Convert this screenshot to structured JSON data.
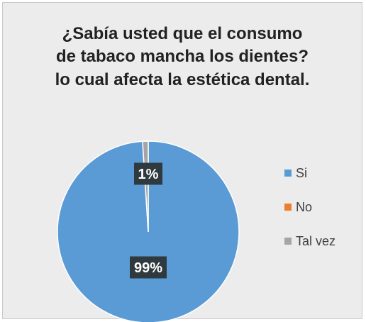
{
  "chart_data": {
    "type": "pie",
    "title_lines": [
      "¿Sabía usted que el consumo",
      "de tabaco mancha los dientes?",
      "lo cual afecta la estética dental."
    ],
    "categories": [
      "Si",
      "No",
      "Tal vez"
    ],
    "values": [
      99,
      0,
      1
    ],
    "data_labels": [
      "99%",
      "",
      "1%"
    ],
    "colors": [
      "#5b9bd5",
      "#ed7d31",
      "#a5a5a5"
    ],
    "legend_position": "right"
  }
}
